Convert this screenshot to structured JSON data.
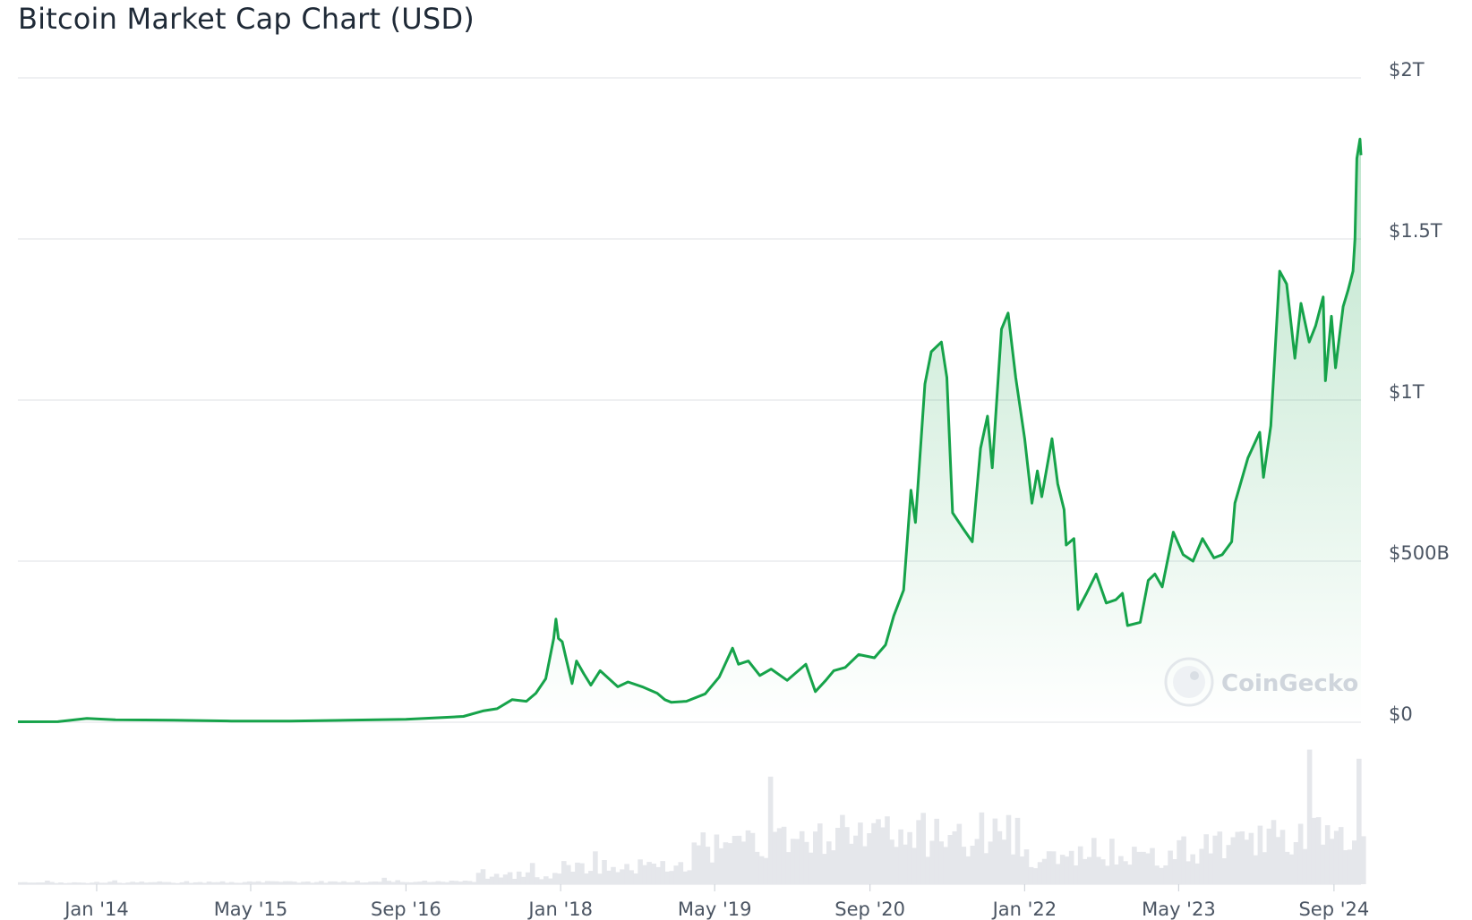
{
  "title": "Bitcoin Market Cap Chart (USD)",
  "watermark": "CoinGecko",
  "colors": {
    "line": "#16a34a",
    "fill_top": "#16a34a",
    "volume": "#e5e7eb",
    "grid": "#e5e7eb"
  },
  "chart_data": {
    "type": "area",
    "title": "Bitcoin Market Cap Chart (USD)",
    "xlabel": "",
    "ylabel": "",
    "ylim": [
      0,
      2000
    ],
    "y_unit": "billion USD",
    "grid": true,
    "legend": "none",
    "y_ticks": [
      {
        "value": 2000,
        "label": "$2T"
      },
      {
        "value": 1500,
        "label": "$1.5T"
      },
      {
        "value": 1000,
        "label": "$1T"
      },
      {
        "value": 500,
        "label": "$500B"
      },
      {
        "value": 0,
        "label": "$0"
      }
    ],
    "x_ticks": [
      {
        "date": "2014-01-01",
        "label": "Jan '14"
      },
      {
        "date": "2015-05-01",
        "label": "May '15"
      },
      {
        "date": "2016-09-01",
        "label": "Sep '16"
      },
      {
        "date": "2018-01-01",
        "label": "Jan '18"
      },
      {
        "date": "2019-05-01",
        "label": "May '19"
      },
      {
        "date": "2020-09-01",
        "label": "Sep '20"
      },
      {
        "date": "2022-01-01",
        "label": "Jan '22"
      },
      {
        "date": "2023-05-01",
        "label": "May '23"
      },
      {
        "date": "2024-09-01",
        "label": "Sep '24"
      }
    ],
    "xlim": [
      "2013-04-28",
      "2024-11-25"
    ],
    "series": [
      {
        "x": [
          "2013-04-28",
          "2013-09-01",
          "2013-12-01",
          "2014-03-01",
          "2014-09-01",
          "2015-03-01",
          "2015-09-01",
          "2016-03-01",
          "2016-09-01",
          "2017-01-01",
          "2017-03-01",
          "2017-05-01",
          "2017-06-15",
          "2017-08-01",
          "2017-09-15",
          "2017-10-15",
          "2017-11-15",
          "2017-12-10",
          "2017-12-17",
          "2017-12-25",
          "2018-01-06",
          "2018-01-20",
          "2018-02-06",
          "2018-02-20",
          "2018-03-15",
          "2018-04-06",
          "2018-05-05",
          "2018-06-30",
          "2018-08-01",
          "2018-09-15",
          "2018-11-01",
          "2018-11-25",
          "2018-12-15",
          "2019-02-01",
          "2019-04-01",
          "2019-05-15",
          "2019-06-26",
          "2019-07-15",
          "2019-08-15",
          "2019-09-20",
          "2019-10-26",
          "2019-12-15",
          "2020-02-12",
          "2020-03-13",
          "2020-04-15",
          "2020-05-10",
          "2020-06-15",
          "2020-07-27",
          "2020-09-15",
          "2020-10-20",
          "2020-11-15",
          "2020-12-16",
          "2021-01-08",
          "2021-01-22",
          "2021-02-21",
          "2021-03-13",
          "2021-04-14",
          "2021-05-01",
          "2021-05-19",
          "2021-06-22",
          "2021-07-20",
          "2021-08-15",
          "2021-09-06",
          "2021-09-21",
          "2021-10-20",
          "2021-11-10",
          "2021-12-04",
          "2022-01-01",
          "2022-01-24",
          "2022-02-10",
          "2022-02-24",
          "2022-03-28",
          "2022-04-15",
          "2022-05-05",
          "2022-05-12",
          "2022-06-05",
          "2022-06-18",
          "2022-07-15",
          "2022-08-14",
          "2022-09-15",
          "2022-10-15",
          "2022-11-05",
          "2022-11-21",
          "2022-12-31",
          "2023-01-25",
          "2023-02-15",
          "2023-03-10",
          "2023-04-14",
          "2023-05-15",
          "2023-06-15",
          "2023-07-15",
          "2023-08-20",
          "2023-09-15",
          "2023-10-15",
          "2023-10-25",
          "2023-12-05",
          "2024-01-11",
          "2024-01-23",
          "2024-02-15",
          "2024-03-14",
          "2024-04-05",
          "2024-05-01",
          "2024-05-20",
          "2024-06-15",
          "2024-07-05",
          "2024-07-29",
          "2024-08-05",
          "2024-08-24",
          "2024-09-06",
          "2024-09-30",
          "2024-10-15",
          "2024-10-31",
          "2024-11-06",
          "2024-11-12",
          "2024-11-22",
          "2024-11-25"
        ],
        "y": [
          1.5,
          1.6,
          12,
          7.5,
          6,
          3.5,
          3.5,
          6,
          9,
          15,
          18,
          35,
          42,
          70,
          65,
          90,
          135,
          260,
          320,
          260,
          250,
          190,
          120,
          190,
          150,
          115,
          160,
          110,
          125,
          110,
          90,
          70,
          62,
          65,
          88,
          140,
          230,
          180,
          190,
          145,
          165,
          130,
          180,
          95,
          130,
          160,
          170,
          210,
          200,
          240,
          330,
          410,
          720,
          620,
          1050,
          1150,
          1180,
          1070,
          650,
          600,
          560,
          850,
          950,
          790,
          1220,
          1270,
          1070,
          880,
          680,
          780,
          700,
          880,
          740,
          660,
          550,
          570,
          350,
          400,
          460,
          370,
          380,
          400,
          300,
          310,
          440,
          460,
          420,
          590,
          520,
          500,
          570,
          510,
          520,
          560,
          680,
          820,
          900,
          760,
          920,
          1400,
          1360,
          1130,
          1300,
          1180,
          1230,
          1320,
          1060,
          1260,
          1100,
          1290,
          1340,
          1400,
          1500,
          1750,
          1810,
          1760
        ]
      }
    ],
    "volume_note": "relative trading volume shown as grey bars below the price chart (no scale printed)"
  }
}
